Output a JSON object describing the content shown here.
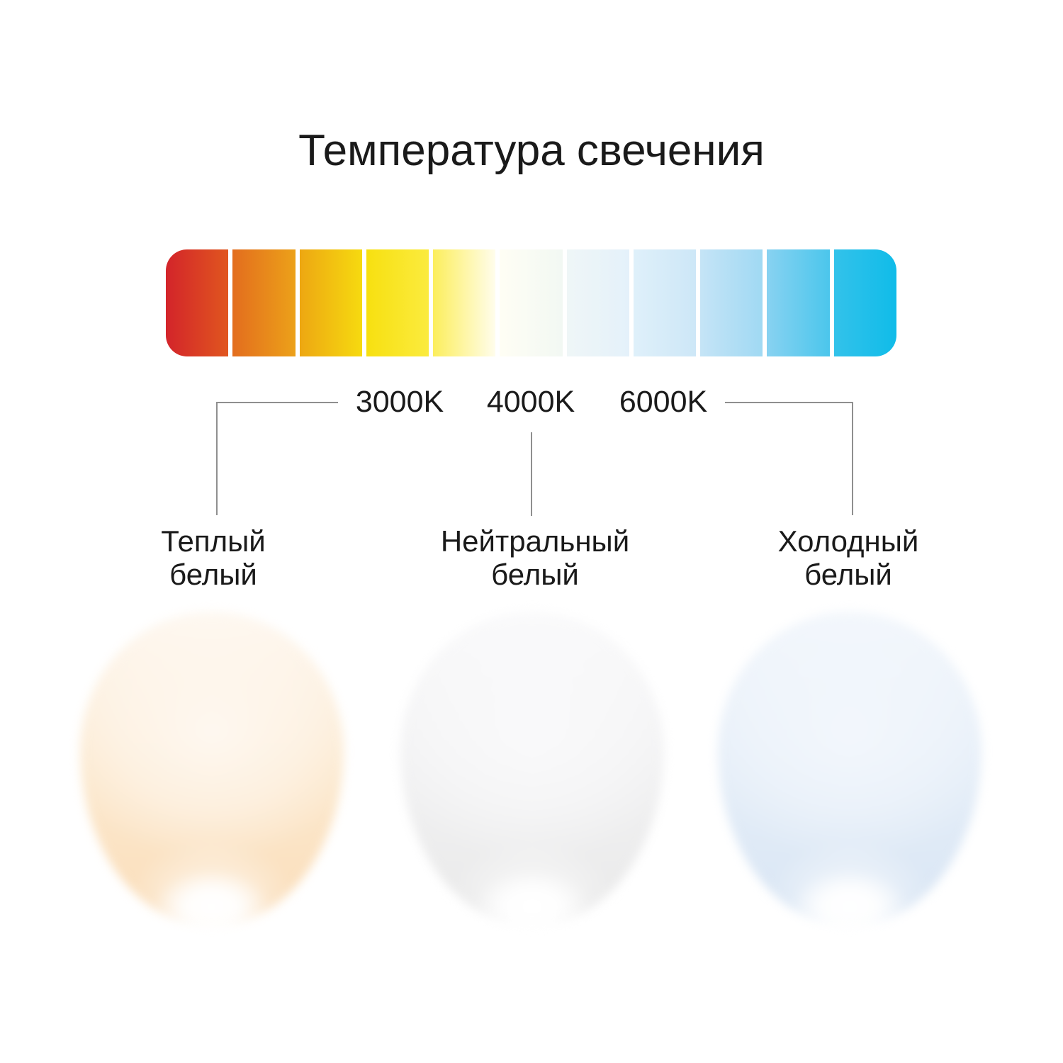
{
  "title": "Температура свечения",
  "colors": {
    "background": "#FFFFFF",
    "text": "#1A1A1A",
    "connector": "#8F8F8F"
  },
  "scale_bar": {
    "description": "color temperature gradient scale, warm red to cold blue",
    "segments": [
      {
        "from": "#D3242A",
        "to": "#E0561F"
      },
      {
        "from": "#E36D1E",
        "to": "#ECA119"
      },
      {
        "from": "#EDA712",
        "to": "#F6DA10"
      },
      {
        "from": "#F7E010",
        "to": "#FBEB3E"
      },
      {
        "from": "#FCEE5C",
        "to": "#FFFDEC"
      },
      {
        "from": "#FFFEF4",
        "to": "#F2F8F3"
      },
      {
        "from": "#EFF6F7",
        "to": "#E4F1FA"
      },
      {
        "from": "#DFF0FA",
        "to": "#CDE7F7"
      },
      {
        "from": "#C5E4F6",
        "to": "#A0D9F3"
      },
      {
        "from": "#88D2F1",
        "to": "#4BC6EC"
      },
      {
        "from": "#33C2EA",
        "to": "#10BCE9"
      }
    ]
  },
  "categories": [
    {
      "kelvin_label": "3000K",
      "name_line1": "Теплый",
      "name_line2": "белый",
      "glow": {
        "top": "#FEF8F1",
        "middle": "#FCE9CF",
        "edge": "#FADDB9",
        "hotspot": "#FFFFFF"
      }
    },
    {
      "kelvin_label": "4000K",
      "name_line1": "Нейтральный",
      "name_line2": "белый",
      "glow": {
        "top": "#FAFAFB",
        "middle": "#F1F1F2",
        "edge": "#E9E9E9",
        "hotspot": "#FFFFFF"
      }
    },
    {
      "kelvin_label": "6000K",
      "name_line1": "Холодный",
      "name_line2": "белый",
      "glow": {
        "top": "#F3F7FC",
        "middle": "#E5EEF8",
        "edge": "#D8E5F4",
        "hotspot": "#FFFFFF"
      }
    }
  ]
}
